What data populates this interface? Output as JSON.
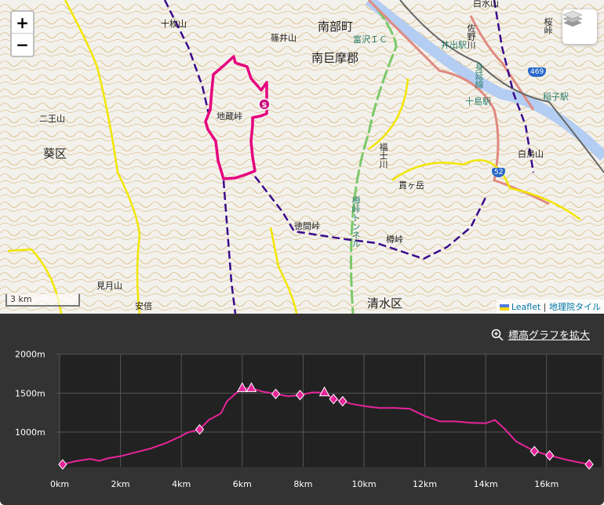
{
  "map": {
    "zoom_in": "+",
    "zoom_out": "−",
    "layers_icon": "layers-icon",
    "scale": "3 km",
    "attribution": {
      "leaflet": "Leaflet",
      "sep": "|",
      "tiles": "地理院タイル"
    },
    "labels": {
      "jumaisan": "十枚山",
      "shinoisan": "篠井山",
      "jizotoge": "地蔵峠",
      "nioyama": "二王山",
      "aoiku": "葵区",
      "mitsukiyama": "見月山",
      "abe": "安倍",
      "nanbucho": "南部町",
      "tomizawa_ic": "富沢ＩＣ",
      "minamikoma": "南巨摩郡",
      "ide_station": "井出駅",
      "sanogawa": "佐野川",
      "minobu_line": "身延線",
      "tojima_station": "十島駅",
      "inako_station": "稲子駅",
      "hakuchosan": "白鳥山",
      "fukushigawa": "福士川",
      "nukigatake": "貫ヶ岳",
      "tokumatoge": "徳間峠",
      "tarutoge": "樽峠",
      "shimizuku": "清水区",
      "sakuratoge": "桜峠",
      "shirakuzuyama": "白水山",
      "tunnel": "樽峠トンネル",
      "start": "S"
    },
    "route_shields": [
      "469",
      "52"
    ],
    "colors": {
      "route": "#e6007e",
      "trail": "#3a0a8c",
      "road": "#f2e600",
      "national_road": "#e08a80",
      "expressway": "#5cc24a"
    }
  },
  "elevation": {
    "expand_label": "標高グラフを拡大",
    "expand_icon": "zoom-in-icon"
  },
  "chart_data": {
    "type": "line",
    "xlabel": "",
    "ylabel": "",
    "xlim": [
      0,
      17.7
    ],
    "ylim": [
      550,
      2000
    ],
    "x_ticks": [
      "0km",
      "2km",
      "4km",
      "6km",
      "8km",
      "10km",
      "12km",
      "14km",
      "16km"
    ],
    "y_ticks": [
      "1000m",
      "1500m",
      "2000m"
    ],
    "grid": true,
    "color": "#e6249a",
    "series": [
      {
        "x": [
          0.1,
          0.5,
          1.0,
          1.3,
          1.6,
          2.0,
          2.5,
          3.0,
          3.5,
          4.0,
          4.2,
          4.6,
          4.9,
          5.3,
          5.5,
          5.9,
          6.0,
          6.3,
          6.7,
          7.1,
          7.5,
          7.9,
          8.3,
          8.7,
          9.0,
          9.3,
          9.6,
          10.0,
          10.5,
          11.0,
          11.5,
          12.0,
          12.5,
          13.0,
          13.5,
          14.0,
          14.3,
          14.6,
          15.0,
          15.6,
          16.1,
          16.7,
          17.4
        ],
        "y": [
          585,
          625,
          655,
          630,
          665,
          690,
          740,
          790,
          860,
          950,
          993,
          1034,
          1155,
          1240,
          1396,
          1534,
          1560,
          1560,
          1517,
          1490,
          1460,
          1475,
          1510,
          1506,
          1424,
          1396,
          1362,
          1334,
          1310,
          1310,
          1300,
          1206,
          1137,
          1137,
          1120,
          1113,
          1155,
          1050,
          880,
          755,
          700,
          640,
          585
        ]
      }
    ],
    "markers": [
      {
        "x": 0.1,
        "y": 585,
        "shape": "diamond"
      },
      {
        "x": 4.6,
        "y": 1034,
        "shape": "diamond"
      },
      {
        "x": 6.0,
        "y": 1560,
        "shape": "triangle"
      },
      {
        "x": 6.3,
        "y": 1560,
        "shape": "triangle"
      },
      {
        "x": 7.1,
        "y": 1490,
        "shape": "diamond"
      },
      {
        "x": 7.9,
        "y": 1475,
        "shape": "diamond"
      },
      {
        "x": 8.7,
        "y": 1506,
        "shape": "triangle"
      },
      {
        "x": 9.0,
        "y": 1424,
        "shape": "diamond"
      },
      {
        "x": 9.3,
        "y": 1396,
        "shape": "diamond"
      },
      {
        "x": 15.6,
        "y": 755,
        "shape": "diamond"
      },
      {
        "x": 16.1,
        "y": 700,
        "shape": "diamond"
      },
      {
        "x": 17.4,
        "y": 585,
        "shape": "diamond"
      }
    ]
  }
}
